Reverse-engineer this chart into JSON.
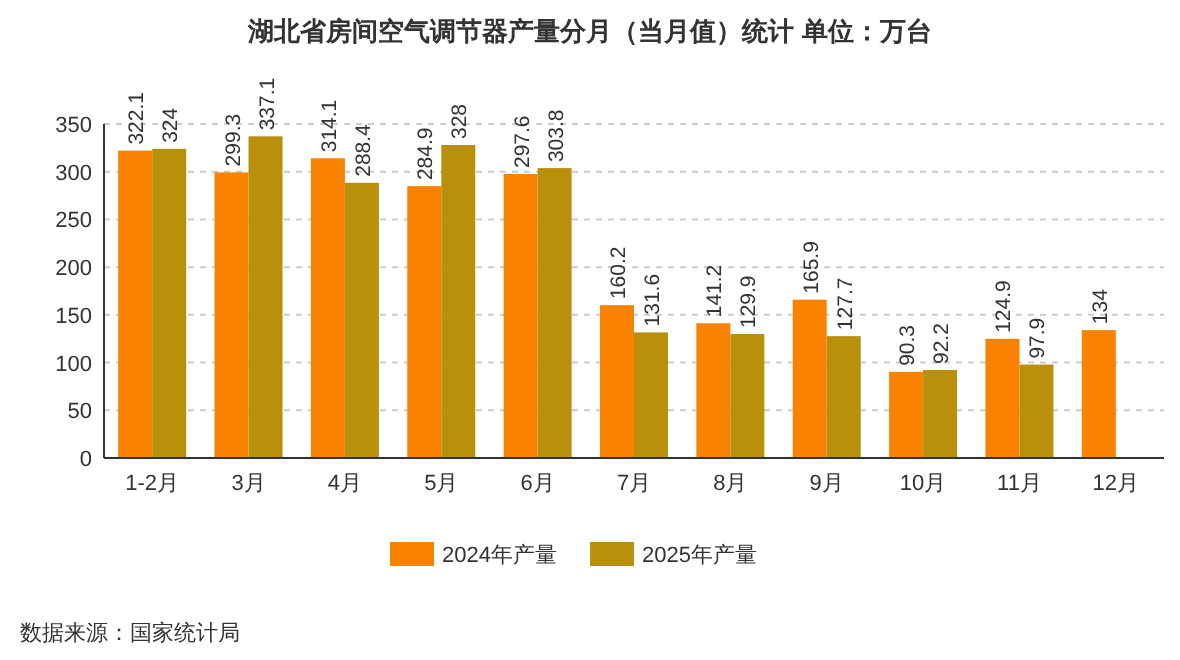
{
  "chart_data": {
    "type": "bar",
    "title": "湖北省房间空气调节器产量分月（当月值）统计  单位：万台",
    "categories": [
      "1-2月",
      "3月",
      "4月",
      "5月",
      "6月",
      "7月",
      "8月",
      "9月",
      "10月",
      "11月",
      "12月"
    ],
    "series": [
      {
        "name": "2024年产量",
        "color": "#f98200",
        "values": [
          322.1,
          299.3,
          314.1,
          284.9,
          297.6,
          160.2,
          141.2,
          165.9,
          90.3,
          124.9,
          134
        ]
      },
      {
        "name": "2025年产量",
        "color": "#b8900c",
        "values": [
          324,
          337.1,
          288.4,
          328,
          303.8,
          131.6,
          129.9,
          127.7,
          92.2,
          97.9,
          null
        ]
      }
    ],
    "ylim": [
      0,
      350
    ],
    "yticks": [
      0,
      50,
      100,
      150,
      200,
      250,
      300,
      350
    ],
    "grid": "y",
    "legend": "bottom",
    "data_labels": true,
    "annotations": [
      "数据来源：国家统计局"
    ]
  }
}
